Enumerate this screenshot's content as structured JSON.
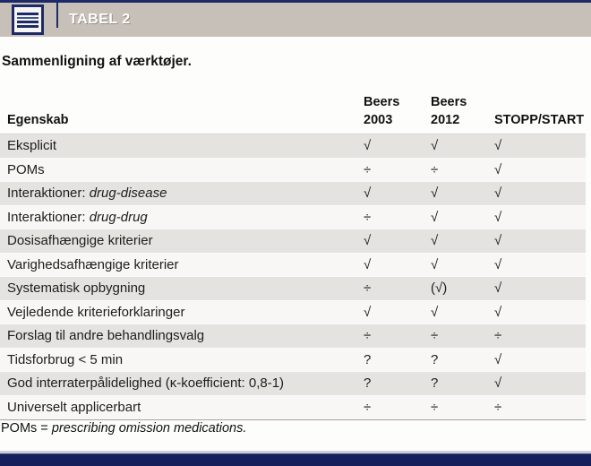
{
  "header": {
    "tag": "TABEL 2",
    "subtitle": "Sammenligning af værktøjer."
  },
  "table": {
    "col_headers": [
      {
        "line1": "Egenskab",
        "line2": ""
      },
      {
        "line1": "Beers",
        "line2": "2003"
      },
      {
        "line1": "Beers",
        "line2": "2012"
      },
      {
        "line1": "STOPP/START",
        "line2": ""
      }
    ],
    "rows": [
      {
        "text": "Eksplicit",
        "italic": "",
        "values": [
          "√",
          "√",
          "√"
        ]
      },
      {
        "text": "POMs",
        "italic": "",
        "values": [
          "÷",
          "÷",
          "√"
        ]
      },
      {
        "text": "Interaktioner: ",
        "italic": "drug-disease",
        "values": [
          "√",
          "√",
          "√"
        ]
      },
      {
        "text": "Interaktioner: ",
        "italic": "drug-drug",
        "values": [
          "÷",
          "√",
          "√"
        ]
      },
      {
        "text": "Dosisafhængige kriterier",
        "italic": "",
        "values": [
          "√",
          "√",
          "√"
        ]
      },
      {
        "text": "Varighedsafhængige kriterier",
        "italic": "",
        "values": [
          "√",
          "√",
          "√"
        ]
      },
      {
        "text": "Systematisk opbygning",
        "italic": "",
        "values": [
          "÷",
          "(√)",
          "√"
        ]
      },
      {
        "text": "Vejledende kriterieforklaringer",
        "italic": "",
        "values": [
          "√",
          "√",
          "√"
        ]
      },
      {
        "text": "Forslag til andre behandlingsvalg",
        "italic": "",
        "values": [
          "÷",
          "÷",
          "÷"
        ]
      },
      {
        "text": "Tidsforbrug < 5 min",
        "italic": "",
        "values": [
          "?",
          "?",
          "√"
        ]
      },
      {
        "text": "God interraterpålidelighed (κ-koefficient: 0,8-1)",
        "italic": "",
        "values": [
          "?",
          "?",
          "√"
        ]
      },
      {
        "text": "Universelt applicerbart",
        "italic": "",
        "values": [
          "÷",
          "÷",
          "÷"
        ]
      }
    ]
  },
  "footnote": {
    "prefix": "POMs = ",
    "italic": "prescribing omission medications."
  },
  "colors": {
    "navy": "#1e2a68",
    "tan_bar": "#c7c0b8",
    "row_shaded": "#e5e3e0",
    "row_light": "#f8f7f5"
  }
}
